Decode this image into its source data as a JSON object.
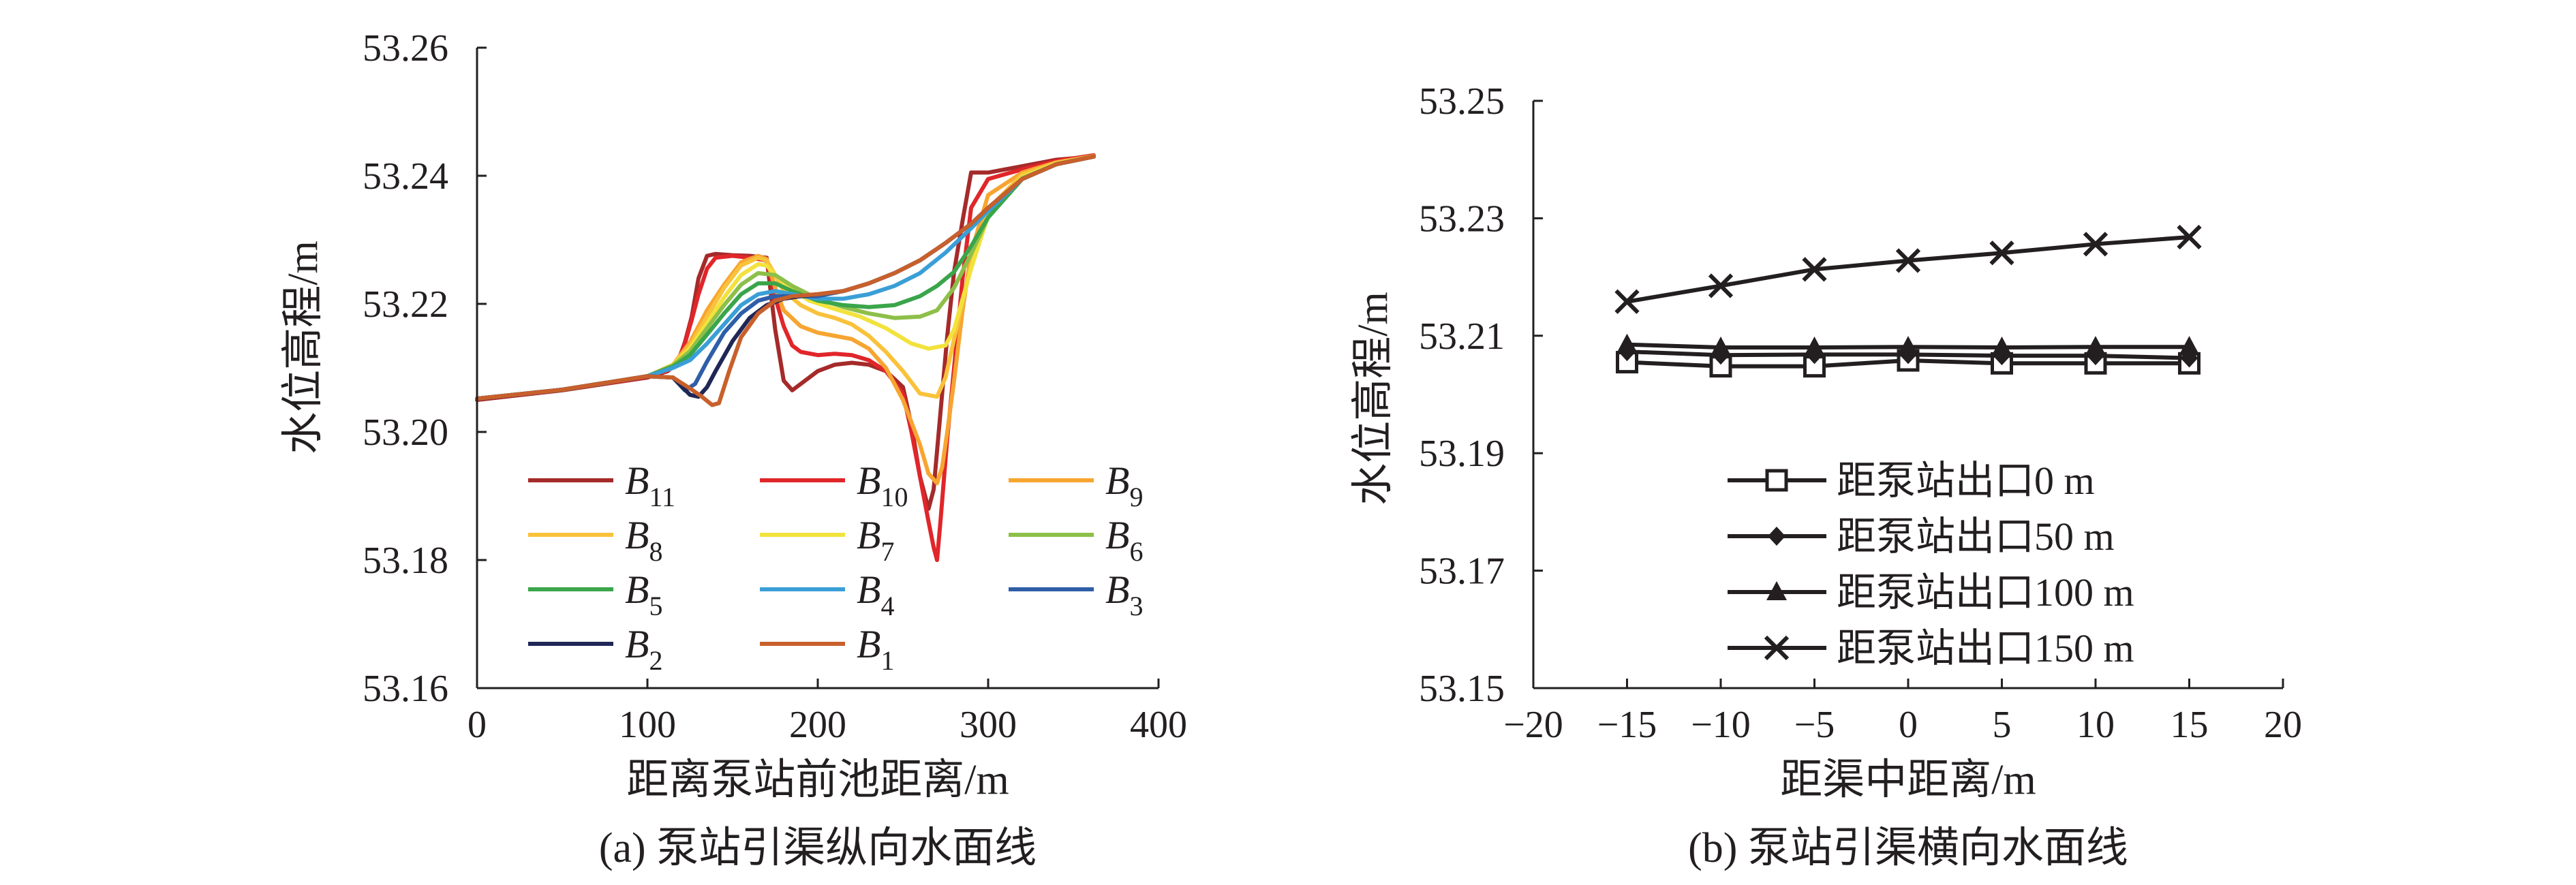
{
  "chart_data": [
    {
      "type": "line",
      "title": "",
      "caption": "(a) 泵站引渠纵向水面线",
      "xlabel": "距离泵站前池距离/m",
      "ylabel": "水位高程/m",
      "xlim": [
        0,
        400
      ],
      "ylim": [
        53.16,
        53.26
      ],
      "xticks": [
        "0",
        "100",
        "200",
        "300",
        "400"
      ],
      "yticks": [
        "53.16",
        "53.18",
        "53.20",
        "53.22",
        "53.24",
        "53.26"
      ],
      "legend_position": "bottom-center",
      "series": [
        {
          "name": "B",
          "sub": "11",
          "color": "#a52a2a",
          "x": [
            0,
            50,
            100,
            112,
            118,
            122,
            126,
            130,
            135,
            140,
            150,
            160,
            170,
            175,
            180,
            185,
            190,
            200,
            210,
            220,
            230,
            240,
            250,
            255,
            260,
            265,
            268,
            272,
            276,
            280,
            285,
            290,
            300,
            320,
            340,
            362
          ],
          "y": [
            53.205,
            53.2065,
            53.2085,
            53.2095,
            53.211,
            53.214,
            53.218,
            53.224,
            53.2275,
            53.2278,
            53.2276,
            53.2275,
            53.2272,
            53.216,
            53.208,
            53.2065,
            53.2075,
            53.2095,
            53.2105,
            53.2108,
            53.2105,
            53.2095,
            53.207,
            53.201,
            53.193,
            53.188,
            53.191,
            53.203,
            53.215,
            53.225,
            53.233,
            53.2405,
            53.2405,
            53.2415,
            53.2425,
            53.243
          ]
        },
        {
          "name": "B",
          "sub": "10",
          "color": "#e0262a",
          "x": [
            0,
            50,
            100,
            112,
            118,
            122,
            126,
            130,
            135,
            140,
            150,
            160,
            170,
            175,
            180,
            185,
            190,
            200,
            210,
            220,
            230,
            240,
            250,
            255,
            260,
            265,
            268,
            270,
            272,
            276,
            280,
            285,
            290,
            300,
            320,
            340,
            362
          ],
          "y": [
            53.2052,
            53.2066,
            53.2086,
            53.2096,
            53.2112,
            53.2138,
            53.2175,
            53.2215,
            53.2255,
            53.2272,
            53.2275,
            53.2272,
            53.2268,
            53.221,
            53.2165,
            53.2135,
            53.2125,
            53.212,
            53.2122,
            53.212,
            53.2112,
            53.2095,
            53.206,
            53.2,
            53.193,
            53.186,
            53.182,
            53.18,
            53.186,
            53.199,
            53.21,
            53.224,
            53.235,
            53.2395,
            53.241,
            53.2423,
            53.2432
          ]
        },
        {
          "name": "B",
          "sub": "9",
          "color": "#f7a531",
          "x": [
            0,
            50,
            100,
            115,
            125,
            135,
            145,
            155,
            165,
            170,
            175,
            180,
            190,
            200,
            210,
            220,
            230,
            240,
            250,
            260,
            265,
            270,
            273,
            276,
            280,
            285,
            290,
            300,
            320,
            340,
            362
          ],
          "y": [
            53.2052,
            53.2066,
            53.2087,
            53.2105,
            53.214,
            53.219,
            53.223,
            53.2265,
            53.2275,
            53.227,
            53.2225,
            53.219,
            53.2165,
            53.2155,
            53.215,
            53.2145,
            53.213,
            53.21,
            53.205,
            53.198,
            53.1935,
            53.192,
            53.1945,
            53.2,
            53.208,
            53.219,
            53.228,
            53.237,
            53.2405,
            53.2421,
            53.2431
          ]
        },
        {
          "name": "B",
          "sub": "8",
          "color": "#f9c23a",
          "x": [
            0,
            50,
            100,
            115,
            125,
            135,
            145,
            155,
            165,
            170,
            175,
            180,
            190,
            200,
            210,
            220,
            230,
            240,
            250,
            260,
            270,
            275,
            280,
            290,
            300,
            320,
            340,
            362
          ],
          "y": [
            53.2052,
            53.2066,
            53.2087,
            53.2105,
            53.2135,
            53.218,
            53.2225,
            53.226,
            53.2272,
            53.2268,
            53.2245,
            53.222,
            53.2198,
            53.2185,
            53.2178,
            53.2168,
            53.215,
            53.2125,
            53.2095,
            53.206,
            53.2055,
            53.2085,
            53.2145,
            53.226,
            53.2348,
            53.2402,
            53.242,
            53.243
          ]
        },
        {
          "name": "B",
          "sub": "7",
          "color": "#f2e23c",
          "x": [
            0,
            50,
            100,
            115,
            125,
            135,
            145,
            155,
            165,
            170,
            175,
            185,
            195,
            210,
            225,
            240,
            255,
            265,
            275,
            280,
            290,
            300,
            320,
            340,
            362
          ],
          "y": [
            53.2052,
            53.2066,
            53.2087,
            53.2105,
            53.213,
            53.217,
            53.221,
            53.2245,
            53.2262,
            53.226,
            53.2245,
            53.2222,
            53.2205,
            53.2192,
            53.218,
            53.2162,
            53.2138,
            53.213,
            53.2135,
            53.216,
            53.2255,
            53.2338,
            53.2398,
            53.2419,
            53.243
          ]
        },
        {
          "name": "B",
          "sub": "6",
          "color": "#8dbf49",
          "x": [
            0,
            50,
            100,
            115,
            125,
            135,
            145,
            155,
            165,
            175,
            185,
            200,
            215,
            230,
            245,
            260,
            270,
            280,
            290,
            300,
            320,
            340,
            362
          ],
          "y": [
            53.2052,
            53.2066,
            53.2087,
            53.2104,
            53.2126,
            53.2162,
            53.2198,
            53.223,
            53.2248,
            53.2245,
            53.2228,
            53.2208,
            53.2195,
            53.2185,
            53.2178,
            53.218,
            53.219,
            53.2225,
            53.2278,
            53.2335,
            53.2396,
            53.2418,
            53.243
          ]
        },
        {
          "name": "B",
          "sub": "5",
          "color": "#3aa54a",
          "x": [
            0,
            50,
            100,
            115,
            125,
            135,
            145,
            155,
            165,
            175,
            185,
            200,
            215,
            230,
            245,
            260,
            270,
            280,
            290,
            300,
            320,
            340,
            362
          ],
          "y": [
            53.2052,
            53.2066,
            53.2087,
            53.2102,
            53.212,
            53.2152,
            53.2185,
            53.2215,
            53.2232,
            53.2232,
            53.222,
            53.2205,
            53.2198,
            53.2195,
            53.2198,
            53.2212,
            53.2228,
            53.225,
            53.229,
            53.2335,
            53.2395,
            53.2418,
            53.243
          ]
        },
        {
          "name": "B",
          "sub": "4",
          "color": "#3a9fd6",
          "x": [
            0,
            50,
            100,
            115,
            125,
            135,
            145,
            155,
            165,
            175,
            185,
            200,
            215,
            230,
            245,
            260,
            275,
            290,
            300,
            320,
            340,
            362
          ],
          "y": [
            53.2052,
            53.2066,
            53.2087,
            53.21,
            53.2112,
            53.2138,
            53.2168,
            53.2198,
            53.2215,
            53.222,
            53.2215,
            53.2208,
            53.2208,
            53.2215,
            53.2228,
            53.2248,
            53.228,
            53.2318,
            53.2345,
            53.2395,
            53.2418,
            53.243
          ]
        },
        {
          "name": "B",
          "sub": "3",
          "color": "#2f5ea8",
          "x": [
            0,
            50,
            100,
            115,
            122,
            128,
            135,
            145,
            155,
            165,
            175,
            185,
            200,
            215,
            230,
            245,
            260,
            275,
            290,
            300,
            320,
            340,
            362
          ],
          "y": [
            53.2052,
            53.2066,
            53.2087,
            53.2085,
            53.2065,
            53.2075,
            53.211,
            53.2155,
            53.2185,
            53.2205,
            53.2212,
            53.2212,
            53.2212,
            53.222,
            53.2232,
            53.2248,
            53.2268,
            53.2295,
            53.2325,
            53.235,
            53.2395,
            53.2418,
            53.243
          ]
        },
        {
          "name": "B",
          "sub": "2",
          "color": "#1f2756",
          "x": [
            0,
            50,
            100,
            115,
            125,
            130,
            135,
            140,
            150,
            160,
            170,
            180,
            190,
            200,
            215,
            230,
            245,
            260,
            275,
            290,
            300,
            320,
            340,
            362
          ],
          "y": [
            53.2052,
            53.2066,
            53.2087,
            53.2085,
            53.2058,
            53.2055,
            53.207,
            53.2095,
            53.2142,
            53.2178,
            53.2198,
            53.2208,
            53.2212,
            53.2215,
            53.222,
            53.2232,
            53.2248,
            53.2268,
            53.2295,
            53.2325,
            53.235,
            53.2395,
            53.2418,
            53.243
          ]
        },
        {
          "name": "B",
          "sub": "1",
          "color": "#c8602c",
          "x": [
            0,
            50,
            100,
            115,
            125,
            132,
            138,
            142,
            148,
            155,
            165,
            175,
            185,
            200,
            215,
            230,
            245,
            260,
            275,
            290,
            300,
            320,
            340,
            362
          ],
          "y": [
            53.2052,
            53.2066,
            53.2087,
            53.2085,
            53.2068,
            53.2055,
            53.2042,
            53.2045,
            53.2095,
            53.2148,
            53.2185,
            53.2205,
            53.2212,
            53.2215,
            53.222,
            53.2232,
            53.2248,
            53.2268,
            53.2295,
            53.2325,
            53.235,
            53.2395,
            53.2418,
            53.243
          ]
        }
      ]
    },
    {
      "type": "line",
      "title": "",
      "caption": "(b) 泵站引渠横向水面线",
      "xlabel": "距渠中距离/m",
      "ylabel": "水位高程/m",
      "xlim": [
        -20,
        20
      ],
      "ylim": [
        53.15,
        53.25
      ],
      "xticks": [
        "−20",
        "−15",
        "−10",
        "−5",
        "0",
        "5",
        "10",
        "15",
        "20"
      ],
      "yticks": [
        "53.15",
        "53.17",
        "53.19",
        "53.21",
        "53.23",
        "53.25"
      ],
      "legend_position": "center-left",
      "series": [
        {
          "name": "距泵站出口0 m",
          "marker": "square",
          "color": "#231f20",
          "x": [
            -15,
            -10,
            -5,
            0,
            5,
            10,
            15
          ],
          "y": [
            53.2055,
            53.2048,
            53.2048,
            53.2058,
            53.2053,
            53.2053,
            53.2053
          ]
        },
        {
          "name": "距泵站出口50 m",
          "marker": "diamond",
          "color": "#231f20",
          "x": [
            -15,
            -10,
            -5,
            0,
            5,
            10,
            15
          ],
          "y": [
            53.2073,
            53.2067,
            53.2068,
            53.2068,
            53.2066,
            53.2066,
            53.2062
          ]
        },
        {
          "name": "距泵站出口100 m",
          "marker": "triangle",
          "color": "#231f20",
          "x": [
            -15,
            -10,
            -5,
            0,
            5,
            10,
            15
          ],
          "y": [
            53.2085,
            53.208,
            53.208,
            53.2081,
            53.208,
            53.2081,
            53.2081
          ]
        },
        {
          "name": "距泵站出口150 m",
          "marker": "x",
          "color": "#231f20",
          "x": [
            -15,
            -10,
            -5,
            0,
            5,
            10,
            15
          ],
          "y": [
            53.2158,
            53.2185,
            53.2213,
            53.2228,
            53.2241,
            53.2256,
            53.2268
          ]
        }
      ]
    }
  ]
}
